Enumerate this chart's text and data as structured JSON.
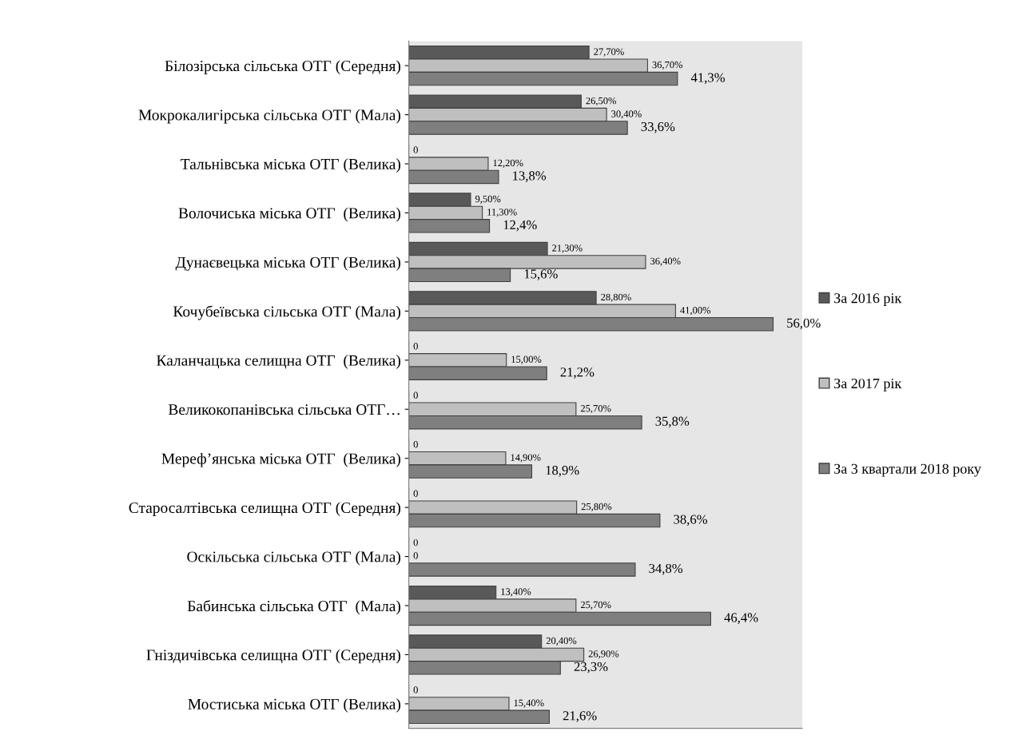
{
  "chart_data": {
    "type": "bar",
    "orientation": "horizontal",
    "legend": "right",
    "tick_labels": "y",
    "grid": false,
    "categories": [
      "Білозірська сільська ОТГ (Середня)",
      "Мокрокалигірська сільська ОТГ (Мала)",
      "Тальнівська міська ОТГ (Велика)",
      "Волочиська міська ОТГ  (Велика)",
      "Дунаєвецька міська ОТГ (Велика)",
      "Кочубеївська сільська ОТГ (Мала)",
      "Каланчацька селищна ОТГ  (Велика)",
      "Великокопанівська сільська ОТГ…",
      "Мереф’янська міська ОТГ  (Велика)",
      "Старосалтівська селищна ОТГ (Середня)",
      "Оскільська сільська ОТГ (Мала)",
      "Бабинська сільська ОТГ  (Мала)",
      "Гніздичівська селищна ОТГ (Середня)",
      "Мостиська міська ОТГ (Велика)"
    ],
    "series": [
      {
        "name": "За 2016 рік",
        "color": "#595959",
        "values": [
          27.7,
          26.5,
          0,
          9.5,
          21.3,
          28.8,
          0,
          0,
          0,
          0,
          0,
          13.4,
          20.4,
          0
        ],
        "value_labels": [
          "27,70%",
          "26,50%",
          "0",
          "9,50%",
          "21,30%",
          "28,80%",
          "0",
          "0",
          "0",
          "0",
          "0",
          "13,40%",
          "20,40%",
          "0"
        ]
      },
      {
        "name": "За 2017 рік",
        "color": "#bfbfbf",
        "values": [
          36.7,
          30.4,
          12.2,
          11.3,
          36.4,
          41.0,
          15.0,
          25.7,
          14.9,
          25.8,
          0,
          25.7,
          26.9,
          15.4
        ],
        "value_labels": [
          "36,70%",
          "30,40%",
          "12,20%",
          "11,30%",
          "36,40%",
          "41,00%",
          "15,00%",
          "25,70%",
          "14,90%",
          "25,80%",
          "0",
          "25,70%",
          "26,90%",
          "15,40%"
        ]
      },
      {
        "name": "За 3 квартали 2018 року",
        "color": "#7f7f7f",
        "values": [
          41.3,
          33.6,
          13.8,
          12.4,
          15.6,
          56.0,
          21.2,
          35.8,
          18.9,
          38.6,
          34.8,
          46.4,
          23.3,
          21.6
        ],
        "value_labels": [
          "41,3%",
          "33,6%",
          "13,8%",
          "12,4%",
          "15,6%",
          "56,0%",
          "21,2%",
          "35,8%",
          "18,9%",
          "38,6%",
          "34,8%",
          "46,4%",
          "23,3%",
          "21,6%"
        ]
      }
    ]
  }
}
